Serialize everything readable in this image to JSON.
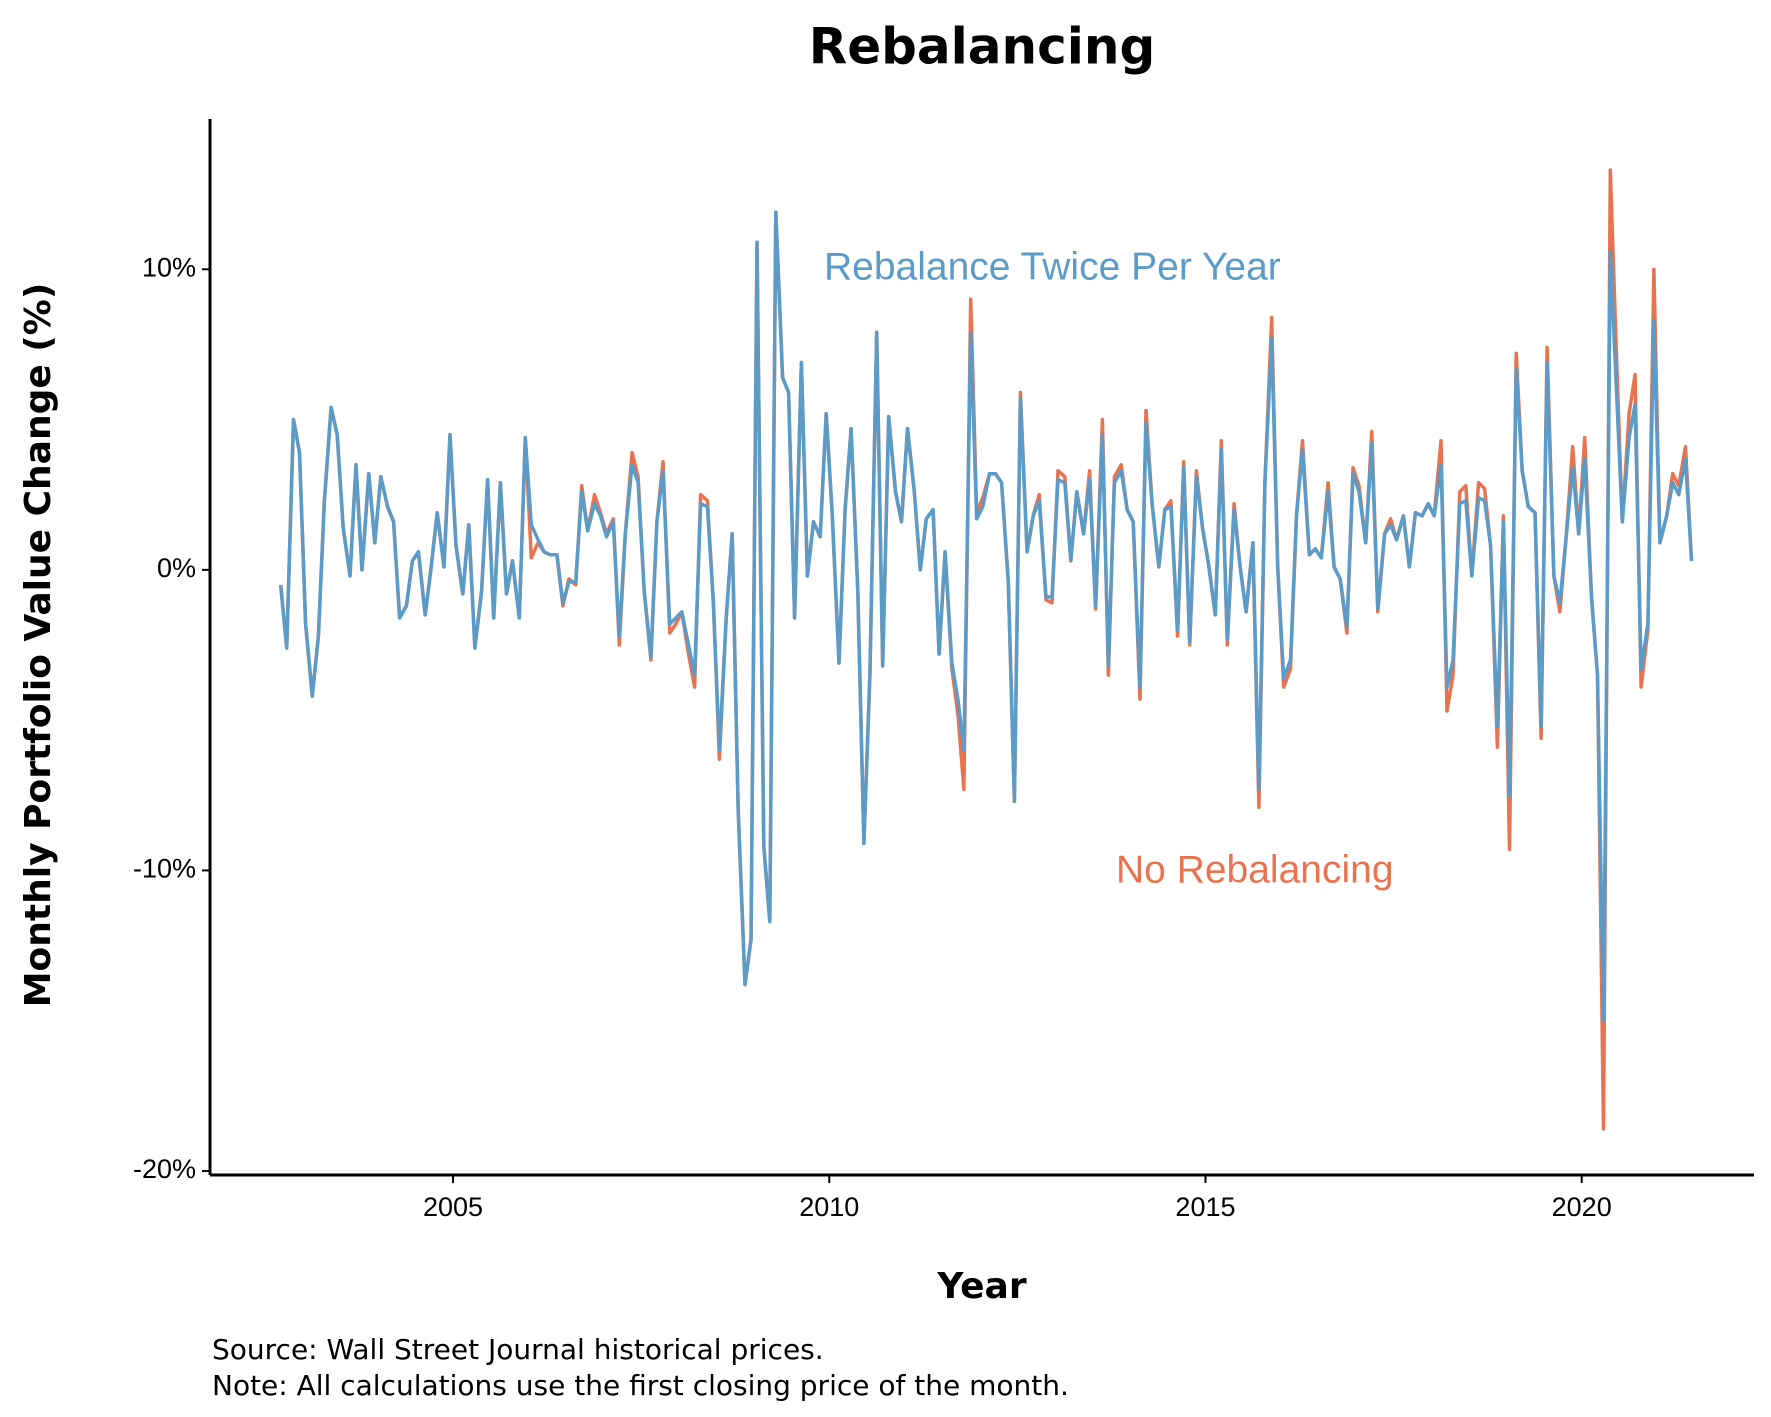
{
  "chart_data": {
    "type": "line",
    "title": "Rebalancing",
    "x_label": "Year",
    "y_label": "Monthly Portfolio Value Change (%)",
    "notes": [
      "Source: Wall Street Journal historical prices.",
      "Note: All calculations use the first closing price of the month."
    ],
    "xlim": [
      2001.77,
      2022.29
    ],
    "ylim": [
      -20,
      15
    ],
    "xticks": [
      2005,
      2010,
      2015,
      2020
    ],
    "yticks": [
      {
        "value": -20,
        "label": "-20%"
      },
      {
        "value": -10,
        "label": "-10%"
      },
      {
        "value": 0,
        "label": "0%"
      },
      {
        "value": 10,
        "label": "10%"
      }
    ],
    "grid": false,
    "x": [
      2002.71,
      2002.79,
      2002.88,
      2002.96,
      2003.04,
      2003.13,
      2003.21,
      2003.29,
      2003.38,
      2003.46,
      2003.54,
      2003.63,
      2003.71,
      2003.79,
      2003.88,
      2003.96,
      2004.04,
      2004.13,
      2004.21,
      2004.29,
      2004.38,
      2004.46,
      2004.54,
      2004.63,
      2004.71,
      2004.79,
      2004.88,
      2004.96,
      2005.04,
      2005.13,
      2005.21,
      2005.29,
      2005.38,
      2005.46,
      2005.54,
      2005.63,
      2005.71,
      2005.79,
      2005.88,
      2005.96,
      2006.04,
      2006.13,
      2006.21,
      2006.29,
      2006.38,
      2006.46,
      2006.54,
      2006.63,
      2006.71,
      2006.79,
      2006.88,
      2006.96,
      2007.04,
      2007.13,
      2007.21,
      2007.29,
      2007.38,
      2007.46,
      2007.54,
      2007.63,
      2007.71,
      2007.79,
      2007.88,
      2007.96,
      2008.04,
      2008.13,
      2008.21,
      2008.29,
      2008.38,
      2008.46,
      2008.54,
      2008.63,
      2008.71,
      2008.79,
      2008.88,
      2008.96,
      2009.04,
      2009.13,
      2009.21,
      2009.29,
      2009.38,
      2009.46,
      2009.54,
      2009.63,
      2009.71,
      2009.79,
      2009.88,
      2009.96,
      2010.04,
      2010.13,
      2010.21,
      2010.29,
      2010.38,
      2010.46,
      2010.54,
      2010.63,
      2010.71,
      2010.79,
      2010.88,
      2010.96,
      2011.04,
      2011.13,
      2011.21,
      2011.29,
      2011.38,
      2011.46,
      2011.54,
      2011.63,
      2011.71,
      2011.79,
      2011.88,
      2011.96,
      2012.04,
      2012.13,
      2012.21,
      2012.29,
      2012.38,
      2012.46,
      2012.54,
      2012.63,
      2012.71,
      2012.79,
      2012.88,
      2012.96,
      2013.04,
      2013.13,
      2013.21,
      2013.29,
      2013.38,
      2013.46,
      2013.54,
      2013.63,
      2013.71,
      2013.79,
      2013.88,
      2013.96,
      2014.04,
      2014.13,
      2014.21,
      2014.29,
      2014.38,
      2014.46,
      2014.54,
      2014.63,
      2014.71,
      2014.79,
      2014.88,
      2014.96,
      2015.04,
      2015.13,
      2015.21,
      2015.29,
      2015.38,
      2015.46,
      2015.54,
      2015.63,
      2015.71,
      2015.79,
      2015.88,
      2015.96,
      2016.04,
      2016.13,
      2016.21,
      2016.29,
      2016.38,
      2016.46,
      2016.54,
      2016.63,
      2016.71,
      2016.79,
      2016.88,
      2016.96,
      2017.04,
      2017.13,
      2017.21,
      2017.29,
      2017.38,
      2017.46,
      2017.54,
      2017.63,
      2017.71,
      2017.79,
      2017.88,
      2017.96,
      2018.04,
      2018.13,
      2018.21,
      2018.29,
      2018.38,
      2018.46,
      2018.54,
      2018.63,
      2018.71,
      2018.79,
      2018.88,
      2018.96,
      2019.04,
      2019.13,
      2019.21,
      2019.29,
      2019.38,
      2019.46,
      2019.54,
      2019.63,
      2019.71,
      2019.79,
      2019.88,
      2019.96,
      2020.04,
      2020.13,
      2020.21,
      2020.29,
      2020.38,
      2020.46,
      2020.54,
      2020.63,
      2020.71,
      2020.79,
      2020.88,
      2020.96,
      2021.04,
      2021.13,
      2021.21,
      2021.29,
      2021.38,
      2021.46
    ],
    "series": [
      {
        "name": "No Rebalancing",
        "color": "#e8734f",
        "values": [
          -0.5,
          -2.6,
          5.0,
          3.9,
          -1.8,
          -4.2,
          -2.2,
          2.3,
          5.4,
          4.5,
          1.4,
          -0.2,
          3.5,
          0,
          3.2,
          0.9,
          3.1,
          2.1,
          1.6,
          -1.6,
          -1.2,
          0.3,
          0.6,
          -1.5,
          0.1,
          1.9,
          0.1,
          4.5,
          0.8,
          -0.8,
          1.5,
          -2.6,
          -0.7,
          3.0,
          -1.6,
          2.9,
          -0.8,
          0.3,
          -1.6,
          4.4,
          0.4,
          0.9,
          0.6,
          0.5,
          0.5,
          -1.2,
          -0.3,
          -0.5,
          2.8,
          1.3,
          2.5,
          1.9,
          1.2,
          1.7,
          -2.5,
          1.2,
          3.9,
          3.1,
          -0.7,
          -3.0,
          1.6,
          3.6,
          -2.1,
          -1.8,
          -1.4,
          -2.8,
          -3.9,
          2.5,
          2.3,
          -1.1,
          -6.3,
          -1.6,
          1.2,
          -8.0,
          -13.8,
          -12.3,
          10.9,
          -9.2,
          -11.7,
          11.9,
          6.4,
          5.9,
          -1.6,
          6.9,
          -0.2,
          1.6,
          1.1,
          5.2,
          1.8,
          -3.1,
          2.0,
          4.7,
          -0.7,
          -9.1,
          -3.5,
          7.9,
          -3.2,
          5.1,
          2.6,
          1.6,
          4.7,
          2.6,
          0,
          1.7,
          2.0,
          -2.8,
          0.6,
          -3.3,
          -4.8,
          -7.3,
          9.0,
          1.9,
          2.4,
          3.2,
          3.2,
          2.9,
          -0.4,
          -7.7,
          5.9,
          0.6,
          1.8,
          2.5,
          -1.0,
          -1.1,
          3.3,
          3.1,
          0.3,
          2.6,
          1.2,
          3.3,
          -1.3,
          5.0,
          -3.5,
          3.1,
          3.5,
          2.0,
          1.6,
          -4.3,
          5.3,
          2.2,
          0.1,
          2.0,
          2.3,
          -2.2,
          3.6,
          -2.5,
          3.3,
          1.4,
          0.2,
          -1.5,
          4.3,
          -2.5,
          2.2,
          0.1,
          -1.4,
          0.9,
          -7.9,
          2.9,
          8.4,
          0.1,
          -3.9,
          -3.3,
          1.8,
          4.3,
          0.5,
          0.7,
          0.4,
          2.9,
          0.1,
          -0.3,
          -2.1,
          3.4,
          2.8,
          0.9,
          4.6,
          -1.4,
          1.2,
          1.7,
          1.0,
          1.8,
          0.1,
          1.9,
          1.8,
          2.2,
          1.8,
          4.3,
          -4.7,
          -3.5,
          2.6,
          2.8,
          -0.2,
          2.9,
          2.7,
          0.8,
          -5.9,
          1.8,
          -9.3,
          7.2,
          3.3,
          2.1,
          1.9,
          -5.6,
          7.4,
          -0.2,
          -1.4,
          1.0,
          4.1,
          1.2,
          4.4,
          -0.9,
          -3.5,
          -18.6,
          13.3,
          7.3,
          1.6,
          5.2,
          6.5,
          -3.9,
          -2.0,
          10.0,
          0.9,
          1.8,
          3.2,
          2.8,
          4.1,
          0.3
        ]
      },
      {
        "name": "Rebalance Twice Per Year",
        "color": "#5b9bc7",
        "values": [
          -0.5,
          -2.6,
          5.0,
          3.9,
          -1.8,
          -4.2,
          -2.2,
          2.3,
          5.4,
          4.5,
          1.4,
          -0.2,
          3.5,
          0,
          3.2,
          0.9,
          3.1,
          2.1,
          1.6,
          -1.6,
          -1.2,
          0.3,
          0.6,
          -1.5,
          0.1,
          1.9,
          0.1,
          4.5,
          0.8,
          -0.8,
          1.5,
          -2.6,
          -0.7,
          3.0,
          -1.6,
          2.9,
          -0.8,
          0.3,
          -1.6,
          4.4,
          1.5,
          1.0,
          0.6,
          0.5,
          0.5,
          -1.1,
          -0.4,
          -0.4,
          2.6,
          1.3,
          2.2,
          1.8,
          1.1,
          1.6,
          -2.2,
          1.2,
          3.5,
          2.9,
          -0.7,
          -2.9,
          1.6,
          3.3,
          -1.8,
          -1.6,
          -1.4,
          -2.5,
          -3.5,
          2.2,
          2.1,
          -1.1,
          -6.0,
          -1.6,
          1.2,
          -8.0,
          -13.8,
          -12.3,
          10.9,
          -9.2,
          -11.7,
          11.9,
          6.4,
          5.9,
          -1.6,
          6.9,
          -0.2,
          1.6,
          1.1,
          5.2,
          1.8,
          -3.1,
          2.0,
          4.7,
          -0.7,
          -9.1,
          -3.5,
          7.9,
          -3.2,
          5.1,
          2.6,
          1.6,
          4.7,
          2.6,
          0,
          1.7,
          2.0,
          -2.8,
          0.6,
          -3.1,
          -4.3,
          -6.0,
          7.9,
          1.7,
          2.1,
          3.2,
          3.2,
          2.9,
          -0.4,
          -7.7,
          5.7,
          0.6,
          1.8,
          2.3,
          -0.9,
          -0.9,
          3.0,
          2.9,
          0.3,
          2.6,
          1.2,
          3.0,
          -1.2,
          4.5,
          -3.2,
          2.9,
          3.3,
          2.0,
          1.6,
          -3.9,
          4.9,
          2.2,
          0.1,
          2.0,
          2.1,
          -2.0,
          3.4,
          -2.4,
          3.1,
          1.4,
          0.2,
          -1.5,
          4.0,
          -2.3,
          2.0,
          0.1,
          -1.4,
          0.9,
          -7.3,
          2.9,
          7.7,
          0.1,
          -3.6,
          -3.0,
          1.8,
          4.0,
          0.5,
          0.7,
          0.4,
          2.6,
          0.1,
          -0.3,
          -1.9,
          3.2,
          2.6,
          0.9,
          4.2,
          -1.3,
          1.2,
          1.5,
          1.0,
          1.8,
          0.1,
          1.9,
          1.8,
          2.2,
          1.8,
          3.5,
          -3.9,
          -3.0,
          2.2,
          2.3,
          -0.2,
          2.4,
          2.3,
          0.8,
          -5.2,
          1.6,
          -7.5,
          6.7,
          3.3,
          2.1,
          1.9,
          -5.2,
          6.9,
          -0.2,
          -1.1,
          1.0,
          3.4,
          1.2,
          3.7,
          -0.9,
          -3.5,
          -15.0,
          10.6,
          6.1,
          1.6,
          4.4,
          5.5,
          -3.3,
          -1.8,
          8.3,
          0.9,
          1.8,
          2.9,
          2.5,
          3.7,
          0.3
        ]
      }
    ],
    "annotations": [
      {
        "text": "Rebalance Twice Per Year",
        "series": 1
      },
      {
        "text": "No Rebalancing",
        "series": 0
      }
    ]
  }
}
